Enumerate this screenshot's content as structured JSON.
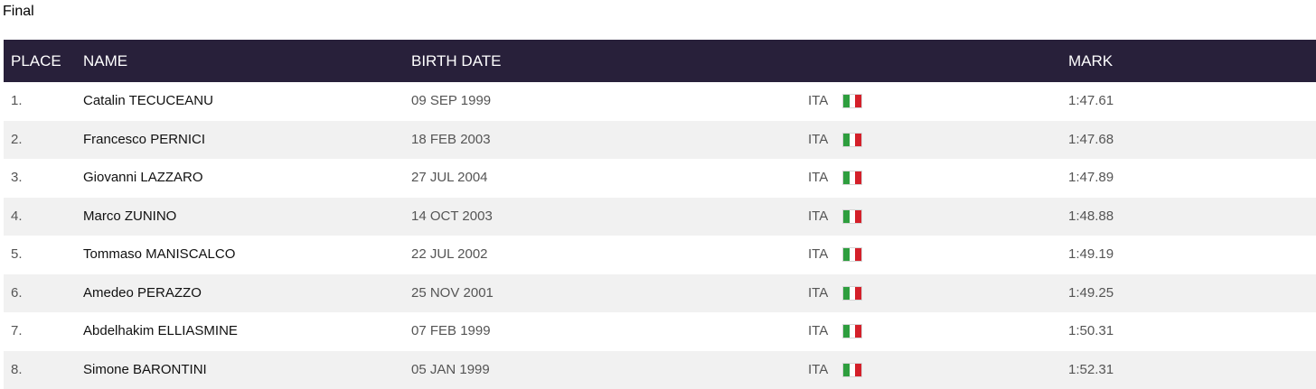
{
  "heading": "Final",
  "columns": {
    "place": "PLACE",
    "name": "NAME",
    "birth_date": "BIRTH DATE",
    "country": "",
    "mark": "MARK"
  },
  "flag_colors": {
    "green": "#2e9e3e",
    "white": "#ffffff",
    "red": "#d4202a"
  },
  "flag_icon": "italy-flag-icon",
  "rows": [
    {
      "place": "1.",
      "name": "Catalin TECUCEANU",
      "birth_date": "09 SEP 1999",
      "country": "ITA",
      "mark": "1:47.61"
    },
    {
      "place": "2.",
      "name": "Francesco PERNICI",
      "birth_date": "18 FEB 2003",
      "country": "ITA",
      "mark": "1:47.68"
    },
    {
      "place": "3.",
      "name": "Giovanni LAZZARO",
      "birth_date": "27 JUL 2004",
      "country": "ITA",
      "mark": "1:47.89"
    },
    {
      "place": "4.",
      "name": "Marco ZUNINO",
      "birth_date": "14 OCT 2003",
      "country": "ITA",
      "mark": "1:48.88"
    },
    {
      "place": "5.",
      "name": "Tommaso MANISCALCO",
      "birth_date": "22 JUL 2002",
      "country": "ITA",
      "mark": "1:49.19"
    },
    {
      "place": "6.",
      "name": "Amedeo PERAZZO",
      "birth_date": "25 NOV 2001",
      "country": "ITA",
      "mark": "1:49.25"
    },
    {
      "place": "7.",
      "name": "Abdelhakim ELLIASMINE",
      "birth_date": "07 FEB 1999",
      "country": "ITA",
      "mark": "1:50.31"
    },
    {
      "place": "8.",
      "name": "Simone BARONTINI",
      "birth_date": "05 JAN 1999",
      "country": "ITA",
      "mark": "1:52.31"
    }
  ]
}
